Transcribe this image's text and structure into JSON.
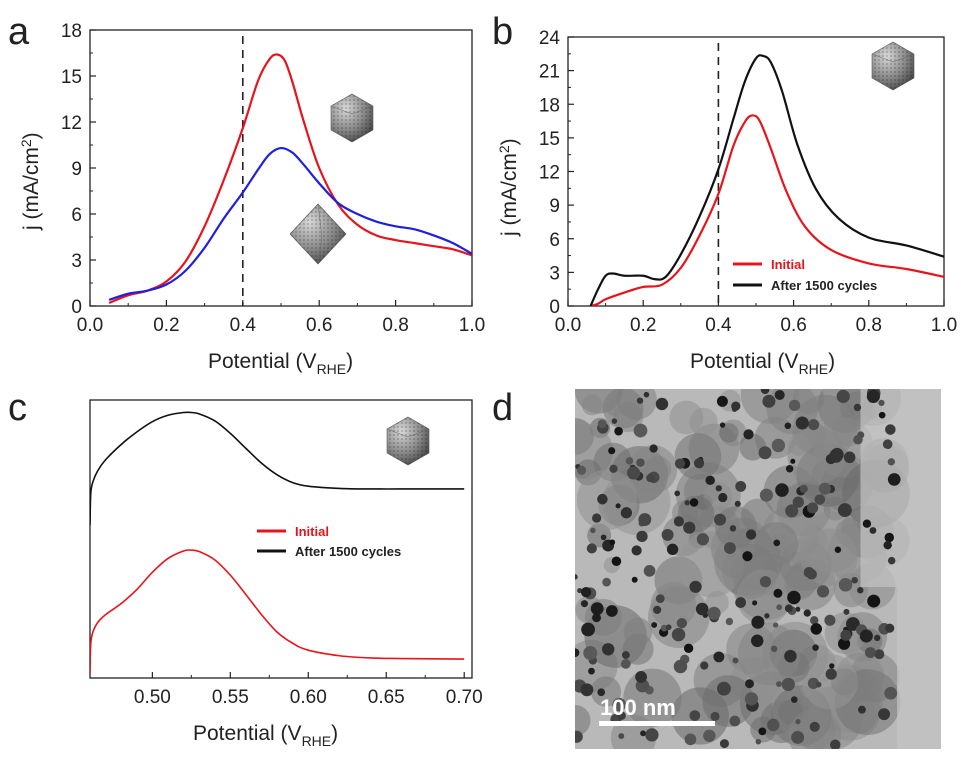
{
  "chart_data": [
    {
      "panel": "a",
      "type": "line",
      "xlabel": "Potential (V",
      "xlabel_sub": "RHE",
      "xlabel_tail": ")",
      "ylabel": "j (mA/cm",
      "ylabel_sup": "2",
      "ylabel_tail": ")",
      "xlim": [
        0.0,
        1.0
      ],
      "ylim": [
        0,
        18
      ],
      "xticks": [
        0.0,
        0.2,
        0.4,
        0.6,
        0.8,
        1.0
      ],
      "xtick_labels": [
        "0.0",
        "0.2",
        "0.4",
        "0.6",
        "0.8",
        "1.0"
      ],
      "yticks": [
        0,
        3,
        6,
        9,
        12,
        15,
        18
      ],
      "ytick_labels": [
        "0",
        "3",
        "6",
        "9",
        "12",
        "15",
        "18"
      ],
      "vline": 0.4,
      "series": [
        {
          "name": "icosahedra",
          "color": "#e8141b",
          "x": [
            0.05,
            0.1,
            0.15,
            0.2,
            0.25,
            0.3,
            0.35,
            0.4,
            0.44,
            0.47,
            0.49,
            0.51,
            0.53,
            0.56,
            0.6,
            0.65,
            0.7,
            0.75,
            0.8,
            0.85,
            0.9,
            0.95,
            1.0
          ],
          "y": [
            0.2,
            0.7,
            1.0,
            1.6,
            2.9,
            5.2,
            8.2,
            11.6,
            14.7,
            16.1,
            16.4,
            16.0,
            14.6,
            12.0,
            9.0,
            6.6,
            5.3,
            4.6,
            4.3,
            4.1,
            3.9,
            3.7,
            3.3
          ]
        },
        {
          "name": "octahedra",
          "color": "#1f1fe0",
          "x": [
            0.05,
            0.1,
            0.15,
            0.2,
            0.25,
            0.3,
            0.35,
            0.4,
            0.44,
            0.47,
            0.5,
            0.53,
            0.56,
            0.6,
            0.65,
            0.7,
            0.75,
            0.8,
            0.85,
            0.9,
            0.95,
            1.0
          ],
          "y": [
            0.4,
            0.8,
            1.0,
            1.4,
            2.3,
            3.8,
            5.7,
            7.4,
            8.9,
            9.9,
            10.3,
            10.0,
            9.2,
            8.0,
            6.7,
            6.0,
            5.5,
            5.2,
            5.0,
            4.6,
            4.1,
            3.4
          ]
        }
      ]
    },
    {
      "panel": "b",
      "type": "line",
      "xlabel": "Potential (V",
      "xlabel_sub": "RHE",
      "xlabel_tail": ")",
      "ylabel": "j (mA/cm",
      "ylabel_sup": "2",
      "ylabel_tail": ")",
      "xlim": [
        0.0,
        1.0
      ],
      "ylim": [
        0,
        24
      ],
      "xticks": [
        0.0,
        0.2,
        0.4,
        0.6,
        0.8,
        1.0
      ],
      "xtick_labels": [
        "0.0",
        "0.2",
        "0.4",
        "0.6",
        "0.8",
        "1.0"
      ],
      "yticks": [
        0,
        3,
        6,
        9,
        12,
        15,
        18,
        21,
        24
      ],
      "ytick_labels": [
        "0",
        "3",
        "6",
        "9",
        "12",
        "15",
        "18",
        "21",
        "24"
      ],
      "vline": 0.4,
      "legend": [
        "Initial",
        "After 1500 cycles"
      ],
      "series": [
        {
          "name": "Initial",
          "color": "#e8141b",
          "x": [
            0.06,
            0.08,
            0.1,
            0.15,
            0.2,
            0.25,
            0.3,
            0.35,
            0.4,
            0.44,
            0.47,
            0.49,
            0.51,
            0.54,
            0.58,
            0.63,
            0.7,
            0.8,
            0.9,
            1.0
          ],
          "y": [
            0.0,
            0.2,
            0.6,
            1.2,
            1.7,
            1.9,
            3.4,
            6.3,
            10.0,
            14.3,
            16.4,
            17.0,
            16.5,
            14.0,
            10.3,
            7.1,
            5.0,
            3.8,
            3.3,
            2.6
          ]
        },
        {
          "name": "After 1500 cycles",
          "color": "#111111",
          "x": [
            0.06,
            0.08,
            0.1,
            0.12,
            0.15,
            0.2,
            0.23,
            0.26,
            0.3,
            0.35,
            0.4,
            0.44,
            0.47,
            0.5,
            0.52,
            0.54,
            0.57,
            0.61,
            0.66,
            0.72,
            0.8,
            0.9,
            1.0
          ],
          "y": [
            0.0,
            1.5,
            2.7,
            2.9,
            2.7,
            2.7,
            2.4,
            2.6,
            4.6,
            8.0,
            12.2,
            16.7,
            20.0,
            22.1,
            22.3,
            21.7,
            19.1,
            14.4,
            10.4,
            7.8,
            6.1,
            5.4,
            4.4
          ]
        }
      ]
    },
    {
      "panel": "c",
      "type": "line",
      "xlabel": "Potential (V",
      "xlabel_sub": "RHE",
      "xlabel_tail": ")",
      "xlim": [
        0.46,
        0.705
      ],
      "xticks": [
        0.5,
        0.55,
        0.6,
        0.65,
        0.7
      ],
      "xtick_labels": [
        "0.50",
        "0.55",
        "0.60",
        "0.65",
        "0.70"
      ],
      "y_ticks_shown": false,
      "ylim": [
        0,
        1
      ],
      "legend": [
        "Initial",
        "After 1500 cycles"
      ],
      "series": [
        {
          "name": "Initial",
          "color": "#e8141b",
          "x": [
            0.46,
            0.4605,
            0.462,
            0.465,
            0.47,
            0.48,
            0.49,
            0.5,
            0.51,
            0.52,
            0.525,
            0.53,
            0.54,
            0.55,
            0.56,
            0.57,
            0.58,
            0.59,
            0.6,
            0.62,
            0.64,
            0.66,
            0.68,
            0.7
          ],
          "y": [
            0.015,
            0.125,
            0.168,
            0.2,
            0.228,
            0.268,
            0.318,
            0.38,
            0.43,
            0.457,
            0.46,
            0.455,
            0.425,
            0.37,
            0.3,
            0.228,
            0.165,
            0.125,
            0.1,
            0.08,
            0.072,
            0.07,
            0.069,
            0.068
          ]
        },
        {
          "name": "After 1500 cycles",
          "color": "#111111",
          "x": [
            0.46,
            0.4605,
            0.462,
            0.465,
            0.47,
            0.48,
            0.49,
            0.5,
            0.51,
            0.52,
            0.525,
            0.53,
            0.54,
            0.55,
            0.56,
            0.57,
            0.58,
            0.59,
            0.6,
            0.62,
            0.64,
            0.66,
            0.68,
            0.7
          ],
          "y": [
            0.55,
            0.665,
            0.708,
            0.746,
            0.785,
            0.84,
            0.885,
            0.922,
            0.945,
            0.955,
            0.955,
            0.95,
            0.925,
            0.88,
            0.826,
            0.773,
            0.731,
            0.703,
            0.69,
            0.682,
            0.68,
            0.68,
            0.68,
            0.68
          ]
        }
      ]
    }
  ],
  "panels": {
    "a": "a",
    "b": "b",
    "c": "c",
    "d": "d"
  },
  "micrograph": {
    "scale_bar_label": "100 nm"
  }
}
